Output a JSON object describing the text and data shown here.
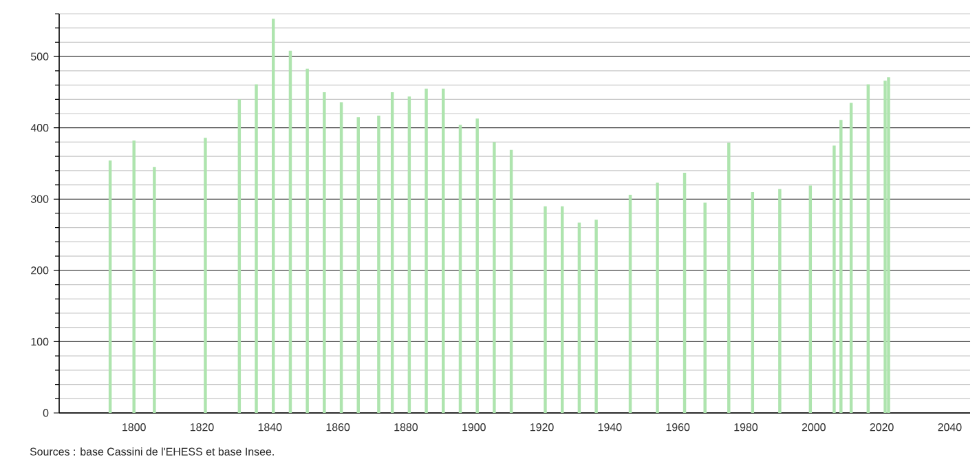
{
  "chart_data": {
    "type": "bar",
    "color": "#aee4ae",
    "x": [
      1793,
      1800,
      1806,
      1821,
      1831,
      1836,
      1841,
      1846,
      1851,
      1856,
      1861,
      1866,
      1872,
      1876,
      1881,
      1886,
      1891,
      1896,
      1901,
      1906,
      1911,
      1921,
      1926,
      1931,
      1936,
      1946,
      1954,
      1962,
      1968,
      1975,
      1982,
      1990,
      1999,
      2006,
      2008,
      2011,
      2016,
      2021,
      2022
    ],
    "values": [
      354,
      382,
      345,
      386,
      440,
      461,
      553,
      508,
      483,
      450,
      436,
      415,
      417,
      450,
      444,
      455,
      455,
      404,
      413,
      380,
      369,
      290,
      290,
      267,
      271,
      306,
      323,
      337,
      295,
      379,
      310,
      314,
      319,
      375,
      411,
      435,
      461,
      466,
      471
    ],
    "xlim": [
      1778,
      2046
    ],
    "xticks": [
      1800,
      1820,
      1840,
      1860,
      1880,
      1900,
      1920,
      1940,
      1960,
      1980,
      2000,
      2020,
      2040
    ],
    "ylim": [
      0,
      560
    ],
    "yticks": [
      0,
      {
        "value": 20,
        "label": null
      },
      {
        "value": 40,
        "label": null
      },
      {
        "value": 60,
        "label": null
      },
      {
        "value": 80,
        "label": null
      },
      100,
      {
        "value": 120,
        "label": null
      },
      {
        "value": 140,
        "label": null
      },
      {
        "value": 160,
        "label": null
      },
      {
        "value": 180,
        "label": null
      },
      200,
      {
        "value": 220,
        "label": null
      },
      {
        "value": 240,
        "label": null
      },
      {
        "value": 260,
        "label": null
      },
      {
        "value": 280,
        "label": null
      },
      300,
      {
        "value": 320,
        "label": null
      },
      {
        "value": 340,
        "label": null
      },
      {
        "value": 360,
        "label": null
      },
      {
        "value": 380,
        "label": null
      },
      400,
      {
        "value": 420,
        "label": null
      },
      {
        "value": 440,
        "label": null
      },
      {
        "value": 460,
        "label": null
      },
      {
        "value": 480,
        "label": null
      },
      500,
      {
        "value": 520,
        "label": null
      },
      {
        "value": 540,
        "label": null
      },
      {
        "value": 560,
        "label": null
      }
    ],
    "grid": "y",
    "annotations": [
      "Sources : base Cassini de l'EHESS et base Insee."
    ]
  }
}
